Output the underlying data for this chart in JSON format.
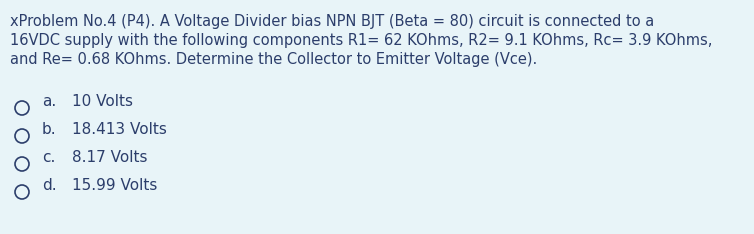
{
  "background_color": "#e8f4f8",
  "text_color": "#2c3e6b",
  "question_lines": [
    "xProblem No.4 (P4). A Voltage Divider bias NPN BJT (Beta = 80) circuit is connected to a",
    "16VDC supply with the following components R1= 62 KOhms, R2= 9.1 KOhms, Rc= 3.9 KOhms,",
    "and Re= 0.68 KOhms. Determine the Collector to Emitter Voltage (Vce)."
  ],
  "options": [
    {
      "label": "a.",
      "text": "10 Volts"
    },
    {
      "label": "b.",
      "text": "18.413 Volts"
    },
    {
      "label": "c.",
      "text": "8.17 Volts"
    },
    {
      "label": "d.",
      "text": "15.99 Volts"
    }
  ],
  "font_size_question": 10.5,
  "font_size_options": 11.0,
  "figsize": [
    7.54,
    2.34
  ],
  "dpi": 100
}
